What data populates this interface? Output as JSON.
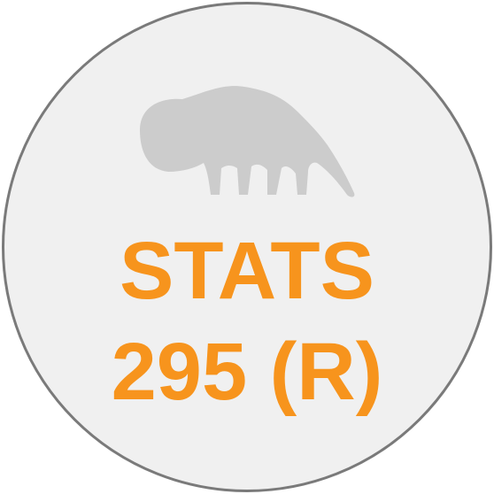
{
  "badge": {
    "line1": "STATS",
    "line2": "295 (R)",
    "text_color": "#f7941d",
    "background_color": "#f0f0f0",
    "border_color": "#7a7a7a",
    "logo_color": "#cccccc",
    "logo_icon": "anteater-icon"
  }
}
